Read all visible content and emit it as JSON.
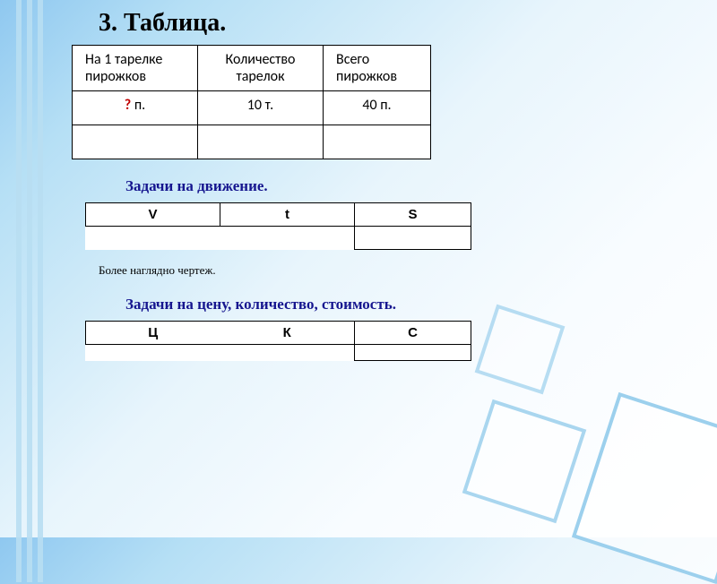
{
  "title": "3. Таблица.",
  "table1": {
    "type": "table",
    "columns": [
      "На 1 тарелке пирожков",
      "Количество тарелок",
      "Всего пирожков"
    ],
    "rows": [
      [
        "? п.",
        "10 т.",
        "40 п."
      ],
      [
        "",
        "",
        ""
      ]
    ],
    "highlight_cell": {
      "row": 0,
      "col": 0,
      "color": "#c00000"
    },
    "border_color": "#000000",
    "background_color": "#ffffff",
    "header_fontsize": 16,
    "cell_fontsize": 16
  },
  "section_motion": {
    "title": "Задачи на движение.",
    "title_color": "#16168f",
    "cols": [
      "V",
      "t",
      "S"
    ]
  },
  "note": "Более наглядно    чертеж.",
  "section_price": {
    "title": "Задачи на цену, количество, стоимость.",
    "title_color": "#16168f",
    "cols": [
      "Ц",
      "К",
      "С"
    ]
  },
  "style": {
    "page_bg_gradient": [
      "#8fc8f0",
      "#ffffff"
    ],
    "accent_square_color": "#9cd0ed",
    "stripe_color": "#b8def2",
    "text_color": "#000000"
  }
}
